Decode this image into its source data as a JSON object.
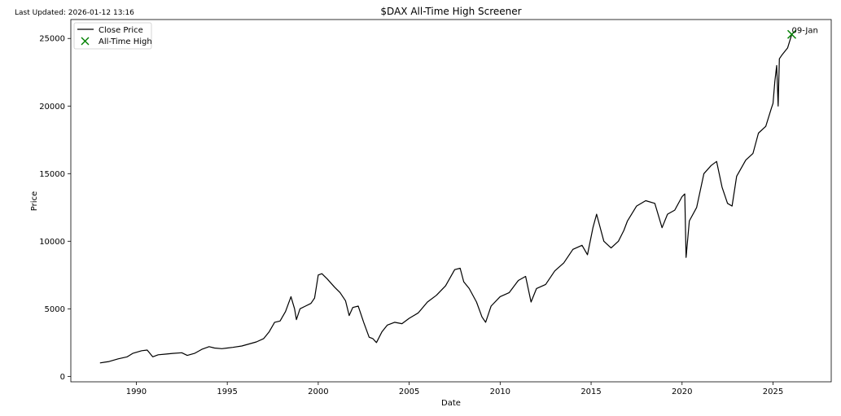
{
  "last_updated": "Last Updated: 2026-01-12 13:16",
  "colors": {
    "price_line": "#000000",
    "ath_marker": "#008000",
    "axis": "#000000",
    "legend_border": "#cccccc"
  },
  "chart_data": {
    "type": "line",
    "title": "$DAX All-Time High Screener",
    "xlabel": "Date",
    "ylabel": "Price",
    "xlim": [
      1986.4,
      2028.2
    ],
    "ylim": [
      -400,
      26400
    ],
    "grid": false,
    "legend": {
      "position": "top-left",
      "entries": [
        "Close Price",
        "All-Time High"
      ]
    },
    "x_ticks": [
      1990,
      1995,
      2000,
      2005,
      2010,
      2015,
      2020,
      2025
    ],
    "x_tick_labels": [
      "1990",
      "1995",
      "2000",
      "2005",
      "2010",
      "2015",
      "2020",
      "2025"
    ],
    "y_ticks": [
      0,
      5000,
      10000,
      15000,
      20000,
      25000
    ],
    "y_tick_labels": [
      "0",
      "5000",
      "10000",
      "15000",
      "20000",
      "25000"
    ],
    "series": [
      {
        "name": "Close Price",
        "x": [
          1988.0,
          1988.5,
          1989.0,
          1989.5,
          1989.8,
          1990.3,
          1990.6,
          1990.9,
          1991.2,
          1991.6,
          1992.0,
          1992.5,
          1992.8,
          1993.2,
          1993.6,
          1994.0,
          1994.3,
          1994.7,
          1995.0,
          1995.3,
          1995.8,
          1996.2,
          1996.6,
          1997.0,
          1997.3,
          1997.6,
          1997.9,
          1998.2,
          1998.5,
          1998.7,
          1998.8,
          1999.0,
          1999.3,
          1999.6,
          1999.8,
          2000.0,
          2000.2,
          2000.5,
          2000.9,
          2001.2,
          2001.5,
          2001.7,
          2001.9,
          2002.2,
          2002.5,
          2002.8,
          2003.0,
          2003.2,
          2003.5,
          2003.8,
          2004.2,
          2004.6,
          2005.0,
          2005.5,
          2006.0,
          2006.5,
          2007.0,
          2007.5,
          2007.8,
          2008.0,
          2008.3,
          2008.7,
          2009.0,
          2009.2,
          2009.5,
          2010.0,
          2010.5,
          2011.0,
          2011.4,
          2011.7,
          2012.0,
          2012.5,
          2013.0,
          2013.5,
          2014.0,
          2014.5,
          2014.8,
          2015.1,
          2015.3,
          2015.7,
          2016.1,
          2016.5,
          2016.8,
          2017.0,
          2017.5,
          2018.0,
          2018.5,
          2018.9,
          2019.2,
          2019.6,
          2020.0,
          2020.15,
          2020.22,
          2020.4,
          2020.8,
          2021.2,
          2021.6,
          2021.9,
          2022.2,
          2022.5,
          2022.75,
          2023.0,
          2023.5,
          2023.9,
          2024.2,
          2024.6,
          2024.9,
          2025.0,
          2025.1,
          2025.2,
          2025.28,
          2025.35,
          2025.5,
          2025.8,
          2026.03
        ],
        "y": [
          1000,
          1100,
          1300,
          1450,
          1700,
          1900,
          1950,
          1450,
          1600,
          1650,
          1700,
          1750,
          1550,
          1700,
          2000,
          2200,
          2100,
          2050,
          2100,
          2150,
          2250,
          2400,
          2550,
          2800,
          3300,
          4000,
          4100,
          4800,
          5900,
          5000,
          4200,
          5000,
          5200,
          5400,
          5800,
          7500,
          7600,
          7200,
          6600,
          6200,
          5600,
          4500,
          5100,
          5200,
          4000,
          2900,
          2800,
          2500,
          3300,
          3800,
          4000,
          3900,
          4300,
          4700,
          5500,
          6000,
          6700,
          7900,
          8000,
          7000,
          6500,
          5500,
          4400,
          4000,
          5200,
          5900,
          6200,
          7100,
          7400,
          5500,
          6500,
          6800,
          7800,
          8400,
          9400,
          9700,
          9000,
          11000,
          12000,
          10000,
          9500,
          10000,
          10800,
          11500,
          12600,
          13000,
          12800,
          11000,
          12000,
          12300,
          13300,
          13500,
          8800,
          11500,
          12500,
          15000,
          15600,
          15900,
          14000,
          12800,
          12600,
          14800,
          16000,
          16500,
          18000,
          18500,
          19800,
          20200,
          21800,
          23000,
          20000,
          23500,
          23800,
          24300,
          25300
        ]
      },
      {
        "name": "All-Time High",
        "type": "scatter",
        "x": [
          2026.03
        ],
        "y": [
          25300
        ],
        "annotations": [
          "09-Jan"
        ]
      }
    ]
  }
}
